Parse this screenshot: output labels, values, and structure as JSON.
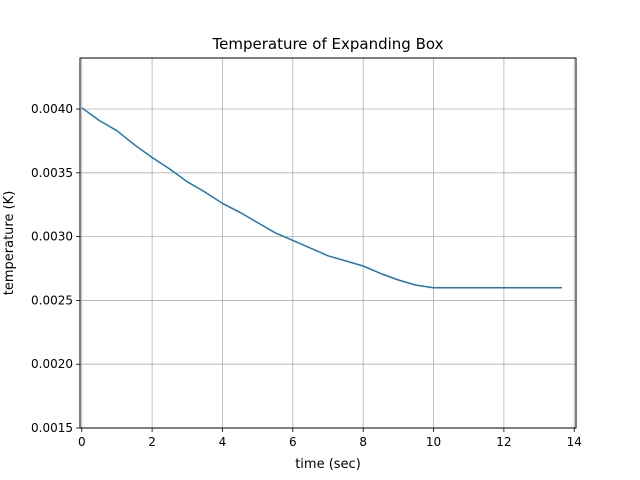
{
  "chart_data": {
    "type": "line",
    "title": "Temperature of Expanding Box",
    "xlabel": "time (sec)",
    "ylabel": "temperature (K)",
    "xlim": [
      -0.05,
      14.05
    ],
    "ylim": [
      0.0015,
      0.0044
    ],
    "xticks": [
      0,
      2,
      4,
      6,
      8,
      10,
      12,
      14
    ],
    "xtick_labels": [
      "0",
      "2",
      "4",
      "6",
      "8",
      "10",
      "12",
      "14"
    ],
    "yticks": [
      0.0015,
      0.002,
      0.0025,
      0.003,
      0.0035,
      0.004
    ],
    "ytick_labels": [
      "0.0015",
      "0.0020",
      "0.0025",
      "0.0030",
      "0.0035",
      "0.0040"
    ],
    "grid": true,
    "series": [
      {
        "color": "#1f77b4",
        "x": [
          0,
          0.5,
          1,
          1.5,
          2,
          2.5,
          3,
          3.5,
          4,
          4.5,
          5,
          5.5,
          6,
          6.5,
          7,
          7.5,
          8,
          8.5,
          9,
          9.5,
          10,
          10.5,
          11,
          11.5,
          12,
          12.5,
          13,
          13.65
        ],
        "values": [
          0.00401,
          0.00391,
          0.00383,
          0.00372,
          0.00362,
          0.00353,
          0.00343,
          0.00335,
          0.00326,
          0.00319,
          0.00311,
          0.00303,
          0.00297,
          0.00291,
          0.00285,
          0.00281,
          0.00277,
          0.00271,
          0.00266,
          0.00262,
          0.0026,
          0.0026,
          0.0026,
          0.0026,
          0.0026,
          0.0026,
          0.0026,
          0.0026
        ]
      }
    ]
  }
}
